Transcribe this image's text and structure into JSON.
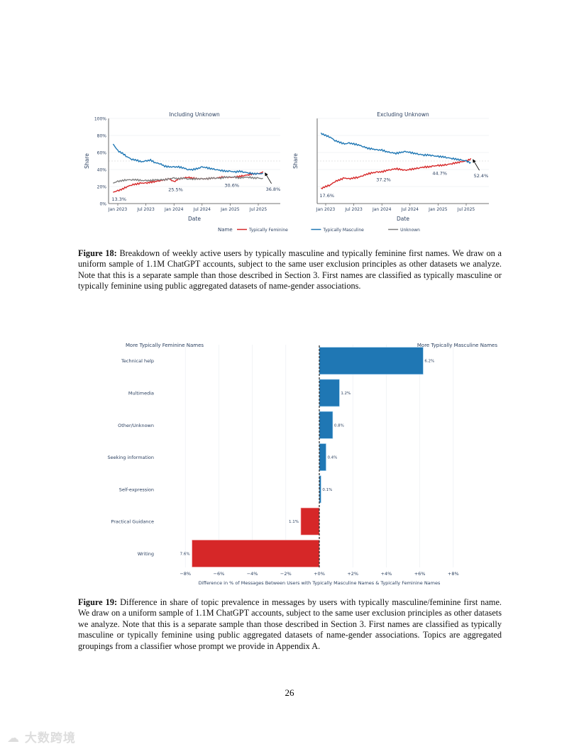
{
  "figure18": {
    "caption_label": "Figure 18:",
    "caption_text": "Breakdown of weekly active users by typically masculine and typically feminine first names. We draw on a uniform sample of 1.1M ChatGPT accounts, subject to the same user exclusion principles as other datasets we analyze. Note that this is a separate sample than those described in Section 3. First names are classified as typically masculine or typically feminine using public aggregated datasets of name-gender associations."
  },
  "figure19": {
    "caption_label": "Figure 19:",
    "caption_text": "Difference in share of topic prevalence in messages by users with typically masculine/feminine first name. We draw on a uniform sample of 1.1M ChatGPT accounts, subject to the same user exclusion principles as other datasets we analyze. Note that this is a separate sample than those described in Section 3. First names are classified as typically masculine or typically feminine using public aggregated datasets of name-gender associations. Topics are aggregated groupings from a classifier whose prompt we provide in Appendix A."
  },
  "page_number": "26",
  "watermark": "大数跨境",
  "chart_data": [
    {
      "type": "line",
      "title": "Including Unknown",
      "xlabel": "Date",
      "ylabel": "Share",
      "ylim": [
        0,
        100
      ],
      "yticks": [
        "0%",
        "20%",
        "40%",
        "60%",
        "80%",
        "100%"
      ],
      "xticks": [
        "Jan 2023",
        "Jul 2023",
        "Jan 2024",
        "Jul 2024",
        "Jan 2025",
        "Jul 2025"
      ],
      "x": [
        "2022-12",
        "2023-01",
        "2023-02",
        "2023-03",
        "2023-04",
        "2023-05",
        "2023-06",
        "2023-07",
        "2023-08",
        "2023-09",
        "2023-10",
        "2023-11",
        "2023-12",
        "2024-01",
        "2024-02",
        "2024-03",
        "2024-04",
        "2024-05",
        "2024-06",
        "2024-07",
        "2024-08",
        "2024-09",
        "2024-10",
        "2024-11",
        "2024-12",
        "2025-01",
        "2025-02",
        "2025-03",
        "2025-04",
        "2025-05",
        "2025-06",
        "2025-07",
        "2025-08"
      ],
      "series": [
        {
          "name": "Typically Feminine",
          "color": "#d62728",
          "values": [
            13.3,
            15,
            17,
            20,
            22,
            23,
            24,
            24,
            25,
            26,
            27,
            28,
            29,
            25.5,
            29,
            30,
            31,
            30,
            29,
            29,
            29,
            30,
            30,
            31,
            31,
            30.6,
            31,
            32,
            33,
            34,
            35,
            35,
            36.8
          ]
        },
        {
          "name": "Typically Masculine",
          "color": "#1f77b4",
          "values": [
            70,
            62,
            59,
            55,
            52,
            51,
            49,
            50,
            51,
            48,
            47,
            44,
            43,
            43,
            43,
            42,
            40,
            40,
            41,
            43,
            42,
            41,
            40,
            39,
            38,
            38,
            37,
            38,
            37,
            36,
            35,
            35,
            35
          ]
        },
        {
          "name": "Unknown",
          "color": "#7f7f7f",
          "values": [
            24,
            26,
            27,
            28,
            28,
            28,
            27,
            27,
            27,
            28,
            28,
            28,
            29,
            30,
            29,
            30,
            29,
            29,
            29,
            29,
            29,
            30,
            30,
            30,
            31,
            31,
            31,
            30,
            31,
            31,
            30,
            30,
            29
          ]
        }
      ],
      "annotations": [
        {
          "x": "2022-12",
          "label": "13.3%"
        },
        {
          "x": "2024-01",
          "label": "25.5%"
        },
        {
          "x": "2025-01",
          "label": "30.6%"
        },
        {
          "x": "2025-08",
          "label": "36.8%"
        }
      ]
    },
    {
      "type": "line",
      "title": "Excluding Unknown",
      "xlabel": "Date",
      "ylabel": "Share",
      "ylim": [
        0,
        100
      ],
      "xticks": [
        "Jan 2023",
        "Jul 2023",
        "Jan 2024",
        "Jul 2024",
        "Jan 2025",
        "Jul 2025"
      ],
      "x": [
        "2022-12",
        "2023-01",
        "2023-02",
        "2023-03",
        "2023-04",
        "2023-05",
        "2023-06",
        "2023-07",
        "2023-08",
        "2023-09",
        "2023-10",
        "2023-11",
        "2023-12",
        "2024-01",
        "2024-02",
        "2024-03",
        "2024-04",
        "2024-05",
        "2024-06",
        "2024-07",
        "2024-08",
        "2024-09",
        "2024-10",
        "2024-11",
        "2024-12",
        "2025-01",
        "2025-02",
        "2025-03",
        "2025-04",
        "2025-05",
        "2025-06",
        "2025-07",
        "2025-08"
      ],
      "series": [
        {
          "name": "Typically Feminine",
          "color": "#d62728",
          "values": [
            17.6,
            20,
            22,
            26,
            28,
            30,
            29,
            30,
            31,
            33,
            35,
            36,
            37,
            37.2,
            39,
            40,
            41,
            40,
            39,
            40,
            41,
            42,
            43,
            43,
            44,
            44.7,
            45,
            46,
            47,
            48,
            49,
            50,
            52.4
          ]
        },
        {
          "name": "Typically Masculine",
          "color": "#1f77b4",
          "values": [
            82.4,
            80,
            78,
            74,
            72,
            70,
            71,
            70,
            69,
            67,
            65,
            64,
            63,
            62.8,
            61,
            60,
            59,
            60,
            61,
            60,
            59,
            58,
            57,
            57,
            56,
            55.3,
            55,
            54,
            53,
            52,
            51,
            50,
            47.6
          ]
        }
      ],
      "annotations": [
        {
          "x": "2022-12",
          "label": "17.6%"
        },
        {
          "x": "2024-01",
          "label": "37.2%"
        },
        {
          "x": "2025-01",
          "label": "44.7%"
        },
        {
          "x": "2025-08",
          "label": "52.4%"
        }
      ]
    },
    {
      "type": "bar",
      "orientation": "horizontal",
      "xlabel": "Difference in % of Messages Between Users with Typically Masculine Names & Typically Feminine Names",
      "xlim": [
        -8,
        8
      ],
      "xticks": [
        "−8%",
        "−6%",
        "−4%",
        "−2%",
        "+0%",
        "+2%",
        "+4%",
        "+6%",
        "+8%"
      ],
      "left_annotation": "More Typically Feminine Names",
      "right_annotation": "More Typically Masculine Names",
      "categories": [
        "Technical help",
        "Multimedia",
        "Other/Unknown",
        "Seeking information",
        "Self-expression",
        "Practical Guidance",
        "Writing"
      ],
      "values": [
        6.2,
        1.2,
        0.8,
        0.4,
        0.1,
        -1.1,
        -7.6
      ],
      "labels": [
        "6.2%",
        "1.2%",
        "0.8%",
        "0.4%",
        "0.1%",
        "1.1%",
        "7.6%"
      ],
      "positive_color": "#1f77b4",
      "negative_color": "#d62728"
    }
  ],
  "legend": {
    "title": "Name"
  }
}
